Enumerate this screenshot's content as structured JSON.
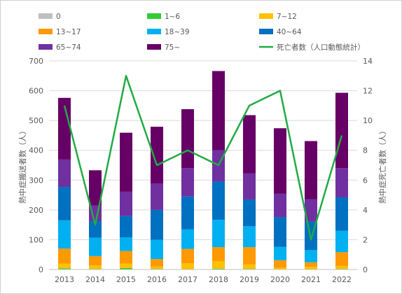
{
  "chart_data": {
    "type": "bar",
    "categories": [
      "2013",
      "2014",
      "2015",
      "2016",
      "2017",
      "2018",
      "2019",
      "2020",
      "2021",
      "2022"
    ],
    "stacked": true,
    "ylabel": "熱中症搬送者数（人）",
    "ylim": [
      0,
      700
    ],
    "yticks": [
      "0",
      "100",
      "200",
      "300",
      "400",
      "500",
      "600",
      "700"
    ],
    "y2label": "熱中症死亡者数（人）",
    "y2lim": [
      0,
      14
    ],
    "y2ticks": [
      "0",
      "2",
      "4",
      "6",
      "8",
      "10",
      "12",
      "14"
    ],
    "grid": true,
    "legend_position": "top",
    "series": [
      {
        "name": "0",
        "color": "#bfbfbf",
        "values": [
          1,
          0,
          0,
          0,
          0,
          1,
          0,
          0,
          0,
          0
        ]
      },
      {
        "name": "1~6",
        "color": "#33cc33",
        "values": [
          3,
          2,
          5,
          2,
          1,
          2,
          2,
          1,
          1,
          2
        ]
      },
      {
        "name": "7~12",
        "color": "#ffc000",
        "values": [
          16,
          12,
          15,
          8,
          20,
          25,
          15,
          5,
          8,
          10
        ]
      },
      {
        "name": "13~17",
        "color": "#ff9900",
        "values": [
          50,
          31,
          42,
          25,
          48,
          47,
          58,
          25,
          15,
          46
        ]
      },
      {
        "name": "18~39",
        "color": "#00b0f0",
        "values": [
          95,
          62,
          46,
          65,
          66,
          92,
          70,
          45,
          41,
          72
        ]
      },
      {
        "name": "40~64",
        "color": "#0070c0",
        "values": [
          112,
          55,
          72,
          100,
          110,
          128,
          90,
          100,
          96,
          112
        ]
      },
      {
        "name": "65~74",
        "color": "#7030a0",
        "values": [
          92,
          53,
          81,
          89,
          95,
          105,
          88,
          78,
          75,
          98
        ]
      },
      {
        "name": "75~",
        "color": "#660066",
        "values": [
          207,
          118,
          198,
          190,
          198,
          266,
          195,
          220,
          195,
          253
        ]
      },
      {
        "name": "死亡者数（人口動態統計）",
        "type": "line",
        "axis": "secondary",
        "color": "#22aa44",
        "values": [
          11,
          3,
          13,
          7,
          8,
          7,
          11,
          12,
          2,
          9
        ]
      }
    ]
  }
}
